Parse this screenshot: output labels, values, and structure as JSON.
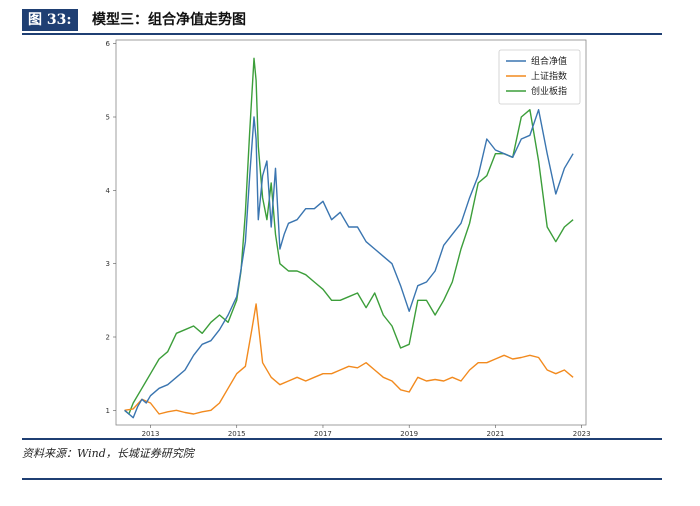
{
  "header": {
    "badge": "图 33:",
    "title": "模型三：组合净值走势图"
  },
  "source": "资料来源：Wind，长城证券研究院",
  "colors": {
    "header_blue": "#1f3f73",
    "series_blue": "#3a75b0",
    "series_orange": "#f28a1e",
    "series_green": "#3c9e3a"
  },
  "chart_data": {
    "type": "line",
    "title": "",
    "xlabel": "",
    "ylabel": "",
    "ylim": [
      0.8,
      6.05
    ],
    "xlim": [
      2012.2,
      2023.1
    ],
    "y_ticks": [
      1,
      2,
      3,
      4,
      5,
      6
    ],
    "x_ticks": [
      2013,
      2015,
      2017,
      2019,
      2021,
      2023
    ],
    "legend_position": "top-right",
    "series": [
      {
        "name": "组合净值",
        "color": "#3a75b0",
        "x": [
          2012.4,
          2012.5,
          2012.6,
          2012.7,
          2012.8,
          2012.9,
          2013.0,
          2013.2,
          2013.4,
          2013.6,
          2013.8,
          2014.0,
          2014.2,
          2014.4,
          2014.6,
          2014.8,
          2015.0,
          2015.2,
          2015.3,
          2015.4,
          2015.45,
          2015.5,
          2015.6,
          2015.7,
          2015.8,
          2015.9,
          2016.0,
          2016.1,
          2016.2,
          2016.4,
          2016.6,
          2016.8,
          2017.0,
          2017.2,
          2017.4,
          2017.6,
          2017.8,
          2018.0,
          2018.2,
          2018.4,
          2018.6,
          2018.8,
          2019.0,
          2019.2,
          2019.4,
          2019.6,
          2019.8,
          2020.0,
          2020.2,
          2020.4,
          2020.6,
          2020.8,
          2021.0,
          2021.2,
          2021.4,
          2021.6,
          2021.8,
          2022.0,
          2022.2,
          2022.4,
          2022.6,
          2022.8
        ],
        "values": [
          1.0,
          0.95,
          0.9,
          1.05,
          1.15,
          1.1,
          1.2,
          1.3,
          1.35,
          1.45,
          1.55,
          1.75,
          1.9,
          1.95,
          2.1,
          2.3,
          2.55,
          3.3,
          4.2,
          5.0,
          4.7,
          3.6,
          4.2,
          4.4,
          3.5,
          4.3,
          3.2,
          3.4,
          3.55,
          3.6,
          3.75,
          3.75,
          3.85,
          3.6,
          3.7,
          3.5,
          3.5,
          3.3,
          3.2,
          3.1,
          3.0,
          2.7,
          2.35,
          2.7,
          2.75,
          2.9,
          3.25,
          3.4,
          3.55,
          3.9,
          4.2,
          4.7,
          4.55,
          4.5,
          4.45,
          4.7,
          4.75,
          5.1,
          4.5,
          3.95,
          4.3,
          4.5
        ]
      },
      {
        "name": "上证指数",
        "color": "#f28a1e",
        "x": [
          2012.4,
          2012.6,
          2012.8,
          2013.0,
          2013.2,
          2013.4,
          2013.6,
          2013.8,
          2014.0,
          2014.2,
          2014.4,
          2014.6,
          2014.8,
          2015.0,
          2015.2,
          2015.35,
          2015.45,
          2015.6,
          2015.8,
          2016.0,
          2016.2,
          2016.4,
          2016.6,
          2016.8,
          2017.0,
          2017.2,
          2017.4,
          2017.6,
          2017.8,
          2018.0,
          2018.2,
          2018.4,
          2018.6,
          2018.8,
          2019.0,
          2019.2,
          2019.4,
          2019.6,
          2019.8,
          2020.0,
          2020.2,
          2020.4,
          2020.6,
          2020.8,
          2021.0,
          2021.2,
          2021.4,
          2021.6,
          2021.8,
          2022.0,
          2022.2,
          2022.4,
          2022.6,
          2022.8
        ],
        "values": [
          1.0,
          1.02,
          1.15,
          1.1,
          0.95,
          0.98,
          1.0,
          0.97,
          0.95,
          0.98,
          1.0,
          1.1,
          1.3,
          1.5,
          1.6,
          2.1,
          2.45,
          1.65,
          1.45,
          1.35,
          1.4,
          1.45,
          1.4,
          1.45,
          1.5,
          1.5,
          1.55,
          1.6,
          1.58,
          1.65,
          1.55,
          1.45,
          1.4,
          1.28,
          1.25,
          1.45,
          1.4,
          1.42,
          1.4,
          1.45,
          1.4,
          1.55,
          1.65,
          1.65,
          1.7,
          1.75,
          1.7,
          1.72,
          1.75,
          1.72,
          1.55,
          1.5,
          1.55,
          1.45
        ]
      },
      {
        "name": "创业板指",
        "color": "#3c9e3a",
        "x": [
          2012.4,
          2012.5,
          2012.6,
          2012.8,
          2013.0,
          2013.2,
          2013.4,
          2013.6,
          2013.8,
          2014.0,
          2014.2,
          2014.4,
          2014.6,
          2014.8,
          2015.0,
          2015.1,
          2015.2,
          2015.3,
          2015.4,
          2015.45,
          2015.5,
          2015.6,
          2015.7,
          2015.8,
          2015.9,
          2016.0,
          2016.2,
          2016.4,
          2016.6,
          2016.8,
          2017.0,
          2017.2,
          2017.4,
          2017.6,
          2017.8,
          2018.0,
          2018.2,
          2018.4,
          2018.6,
          2018.8,
          2019.0,
          2019.2,
          2019.4,
          2019.6,
          2019.8,
          2020.0,
          2020.2,
          2020.4,
          2020.6,
          2020.8,
          2021.0,
          2021.2,
          2021.4,
          2021.6,
          2021.8,
          2022.0,
          2022.2,
          2022.4,
          2022.6,
          2022.8
        ],
        "values": [
          1.0,
          0.95,
          1.1,
          1.3,
          1.5,
          1.7,
          1.8,
          2.05,
          2.1,
          2.15,
          2.05,
          2.2,
          2.3,
          2.2,
          2.5,
          2.9,
          3.7,
          4.8,
          5.8,
          5.5,
          4.6,
          3.9,
          3.6,
          4.1,
          3.4,
          3.0,
          2.9,
          2.9,
          2.85,
          2.75,
          2.65,
          2.5,
          2.5,
          2.55,
          2.6,
          2.4,
          2.6,
          2.3,
          2.15,
          1.85,
          1.9,
          2.5,
          2.5,
          2.3,
          2.5,
          2.75,
          3.2,
          3.55,
          4.1,
          4.2,
          4.5,
          4.5,
          4.45,
          5.0,
          5.1,
          4.4,
          3.5,
          3.3,
          3.5,
          3.6
        ]
      }
    ]
  }
}
